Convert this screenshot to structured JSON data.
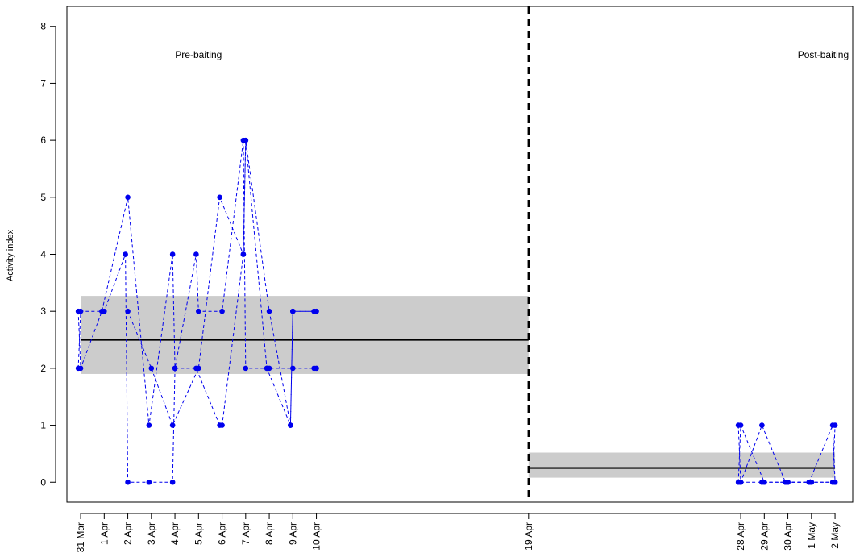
{
  "chart_data": {
    "type": "line",
    "ylabel": "Activity index",
    "ylim": [
      -0.35,
      8.35
    ],
    "yticks": [
      0,
      1,
      2,
      3,
      4,
      5,
      6,
      7,
      8
    ],
    "xticks": [
      {
        "date": "2015-03-31",
        "label": "31 Mar"
      },
      {
        "date": "2015-04-01",
        "label": "1 Apr"
      },
      {
        "date": "2015-04-02",
        "label": "2 Apr"
      },
      {
        "date": "2015-04-03",
        "label": "3 Apr"
      },
      {
        "date": "2015-04-04",
        "label": "4 Apr"
      },
      {
        "date": "2015-04-05",
        "label": "5 Apr"
      },
      {
        "date": "2015-04-06",
        "label": "6 Apr"
      },
      {
        "date": "2015-04-07",
        "label": "7 Apr"
      },
      {
        "date": "2015-04-08",
        "label": "8 Apr"
      },
      {
        "date": "2015-04-09",
        "label": "9 Apr"
      },
      {
        "date": "2015-04-10",
        "label": "10 Apr"
      },
      {
        "date": "2015-04-19",
        "label": "19 Apr"
      },
      {
        "date": "2015-04-28",
        "label": "28 Apr"
      },
      {
        "date": "2015-04-29",
        "label": "29 Apr"
      },
      {
        "date": "2015-04-30",
        "label": "30 Apr"
      },
      {
        "date": "2015-05-01",
        "label": "1 May"
      },
      {
        "date": "2015-05-02",
        "label": "2 May"
      }
    ],
    "xlim": [
      "2015-03-30 10:00",
      "2015-05-02 18:00"
    ],
    "annotations": [
      {
        "text": "Pre-baiting",
        "date": "2015-04-05",
        "y": 7.5
      },
      {
        "text": "Post-baiting",
        "date": "2015-05-01 12:00",
        "y": 7.5
      }
    ],
    "divider": {
      "date": "2015-04-19",
      "style": "dashed"
    },
    "periods": [
      {
        "start": "2015-03-31",
        "end": "2015-04-19",
        "mean": 2.5,
        "ci_low": 1.9,
        "ci_high": 3.27,
        "band_color": "#cccccc"
      },
      {
        "start": "2015-04-19",
        "end": "2015-05-02",
        "mean": 0.25,
        "ci_low": 0.08,
        "ci_high": 0.52,
        "band_color": "#cccccc"
      }
    ],
    "series": [
      {
        "points": [
          [
            "2015-03-30 21:36",
            2
          ],
          [
            "2015-03-31 00:00",
            3
          ],
          [
            "2015-04-01 00:00",
            3
          ],
          [
            "2015-04-01 21:36",
            4
          ],
          [
            "2015-04-02 00:00",
            0
          ],
          [
            "2015-04-02 21:36",
            0
          ],
          [
            "2015-04-03 21:36",
            0
          ],
          [
            "2015-04-04 00:00",
            2
          ],
          [
            "2015-04-04 21:36",
            4
          ],
          [
            "2015-04-05 00:00",
            3
          ],
          [
            "2015-04-06 00:00",
            3
          ],
          [
            "2015-04-06 21:36",
            6
          ],
          [
            "2015-04-07 00:00",
            2
          ],
          [
            "2015-04-07 21:36",
            2
          ],
          [
            "2015-04-08 21:36",
            1
          ],
          [
            "2015-04-09 00:00",
            3
          ],
          [
            "2015-04-09 21:36",
            3
          ]
        ]
      },
      {
        "points": [
          [
            "2015-03-30 21:36",
            3
          ],
          [
            "2015-03-31 00:00",
            2
          ],
          [
            "2015-03-31 21:36",
            3
          ],
          [
            "2015-04-02 00:00",
            5
          ],
          [
            "2015-04-02 21:36",
            1
          ],
          [
            "2015-04-03 21:36",
            4
          ],
          [
            "2015-04-04 00:00",
            2
          ],
          [
            "2015-04-04 21:36",
            2
          ],
          [
            "2015-04-05 21:36",
            1
          ],
          [
            "2015-04-06 00:00",
            1
          ],
          [
            "2015-04-06 21:36",
            4
          ],
          [
            "2015-04-07 00:00",
            6
          ],
          [
            "2015-04-07 21:36",
            2
          ],
          [
            "2015-04-08 00:00",
            2
          ],
          [
            "2015-04-09 00:00",
            2
          ],
          [
            "2015-04-09 21:36",
            2
          ],
          [
            "2015-04-10 00:00",
            2
          ]
        ]
      },
      {
        "points": [
          [
            "2015-04-02 00:00",
            3
          ],
          [
            "2015-04-03 00:00",
            2
          ],
          [
            "2015-04-03 21:36",
            1
          ],
          [
            "2015-04-05 00:00",
            2
          ],
          [
            "2015-04-05 21:36",
            5
          ],
          [
            "2015-04-06 21:36",
            4
          ],
          [
            "2015-04-07 00:00",
            6
          ],
          [
            "2015-04-08 00:00",
            3
          ],
          [
            "2015-04-08 21:36",
            1
          ],
          [
            "2015-04-09 00:00",
            3
          ],
          [
            "2015-04-09 21:36",
            3
          ],
          [
            "2015-04-10 00:00",
            3
          ]
        ]
      },
      {
        "points": [
          [
            "2015-04-27 21:36",
            1
          ],
          [
            "2015-04-28 00:00",
            0
          ],
          [
            "2015-04-28 21:36",
            1
          ],
          [
            "2015-04-29 21:36",
            0
          ],
          [
            "2015-04-30 21:36",
            0
          ],
          [
            "2015-05-01 21:36",
            1
          ],
          [
            "2015-05-02 00:00",
            0
          ]
        ]
      },
      {
        "points": [
          [
            "2015-04-27 21:36",
            0
          ],
          [
            "2015-04-28 00:00",
            1
          ],
          [
            "2015-04-29 00:00",
            0
          ],
          [
            "2015-04-29 21:36",
            0
          ],
          [
            "2015-04-30 00:00",
            0
          ],
          [
            "2015-04-30 21:36",
            0
          ],
          [
            "2015-05-01 00:00",
            0
          ],
          [
            "2015-05-01 21:36",
            0
          ],
          [
            "2015-05-02 00:00",
            1
          ]
        ]
      },
      {
        "points": [
          [
            "2015-04-28 00:00",
            0
          ],
          [
            "2015-04-28 21:36",
            0
          ],
          [
            "2015-04-30 00:00",
            0
          ],
          [
            "2015-05-01 00:00",
            0
          ],
          [
            "2015-05-02 00:00",
            0
          ]
        ]
      }
    ],
    "series_color": "#0000ee",
    "series_style": "dashed",
    "mean_line_color": "#000000"
  }
}
